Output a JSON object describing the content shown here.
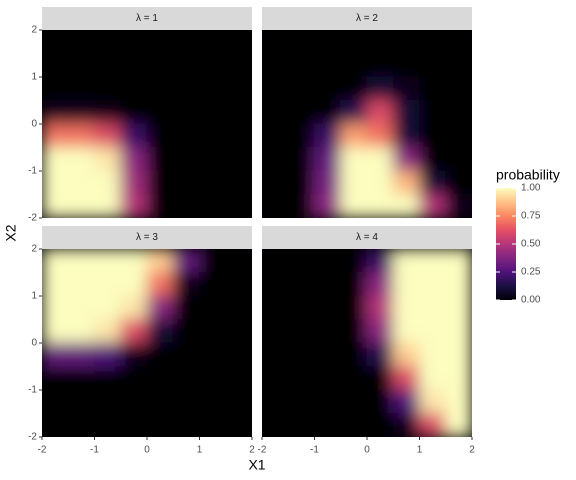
{
  "chart_data": {
    "type": "heatmap",
    "x_title": "X1",
    "y_title": "X2",
    "xlim": [
      -2,
      2
    ],
    "ylim": [
      -2,
      2
    ],
    "xticks": [
      -2,
      -1,
      0,
      1,
      2
    ],
    "yticks": [
      -2,
      -1,
      0,
      1,
      2
    ],
    "x": [
      -1.75,
      -1.25,
      -0.75,
      -0.25,
      0.25,
      0.75,
      1.25,
      1.75
    ],
    "y": [
      1.75,
      1.25,
      0.75,
      0.25,
      -0.25,
      -0.75,
      -1.25,
      -1.75
    ],
    "facets": [
      {
        "label": "λ = 1",
        "values": [
          [
            0,
            0,
            0,
            0,
            0,
            0,
            0,
            0
          ],
          [
            0,
            0,
            0,
            0,
            0,
            0,
            0,
            0
          ],
          [
            0,
            0,
            0,
            0,
            0,
            0,
            0,
            0
          ],
          [
            0.05,
            0.05,
            0.03,
            0,
            0,
            0,
            0,
            0
          ],
          [
            0.7,
            0.7,
            0.6,
            0.2,
            0,
            0,
            0,
            0
          ],
          [
            1,
            1,
            0.95,
            0.4,
            0,
            0,
            0,
            0
          ],
          [
            1,
            1,
            1,
            0.45,
            0,
            0,
            0,
            0
          ],
          [
            1,
            1,
            1,
            0.5,
            0,
            0,
            0,
            0
          ]
        ]
      },
      {
        "label": "λ = 2",
        "values": [
          [
            0,
            0,
            0,
            0,
            0,
            0,
            0,
            0
          ],
          [
            0,
            0,
            0,
            0,
            0,
            0,
            0,
            0
          ],
          [
            0,
            0,
            0,
            0,
            0.1,
            0.05,
            0,
            0
          ],
          [
            0,
            0,
            0,
            0.15,
            0.6,
            0.1,
            0,
            0
          ],
          [
            0,
            0,
            0.2,
            0.8,
            0.7,
            0.1,
            0,
            0
          ],
          [
            0,
            0,
            0.3,
            1,
            1,
            0.4,
            0,
            0
          ],
          [
            0,
            0,
            0.35,
            1,
            1,
            0.85,
            0.1,
            0
          ],
          [
            0,
            0,
            0.4,
            1,
            1,
            1,
            0.5,
            0.05
          ]
        ]
      },
      {
        "label": "λ = 3",
        "values": [
          [
            1,
            1,
            1,
            1,
            0.9,
            0.3,
            0,
            0
          ],
          [
            1,
            1,
            1,
            1,
            0.7,
            0.05,
            0,
            0
          ],
          [
            1,
            1,
            1,
            0.95,
            0.4,
            0,
            0,
            0
          ],
          [
            1,
            1,
            0.95,
            0.6,
            0.1,
            0,
            0,
            0
          ],
          [
            0.3,
            0.3,
            0.25,
            0.05,
            0,
            0,
            0,
            0
          ],
          [
            0,
            0,
            0,
            0,
            0,
            0,
            0,
            0
          ],
          [
            0,
            0,
            0,
            0,
            0,
            0,
            0,
            0
          ],
          [
            0,
            0,
            0,
            0,
            0,
            0,
            0,
            0
          ]
        ]
      },
      {
        "label": "λ = 4",
        "values": [
          [
            0,
            0,
            0,
            0,
            0.2,
            1,
            1,
            1
          ],
          [
            0,
            0,
            0,
            0,
            0.4,
            1,
            1,
            1
          ],
          [
            0,
            0,
            0,
            0,
            0.5,
            1,
            1,
            1
          ],
          [
            0,
            0,
            0,
            0,
            0.4,
            1,
            1,
            1
          ],
          [
            0,
            0,
            0,
            0,
            0.15,
            0.9,
            1,
            1
          ],
          [
            0,
            0,
            0,
            0,
            0,
            0.6,
            1,
            1
          ],
          [
            0,
            0,
            0,
            0,
            0,
            0.25,
            0.95,
            1
          ],
          [
            0,
            0,
            0,
            0,
            0,
            0.05,
            0.6,
            1
          ]
        ]
      }
    ],
    "colorscale": [
      "#000004",
      "#1c1044",
      "#4f127b",
      "#812581",
      "#b5367a",
      "#e55064",
      "#fb8861",
      "#fec287",
      "#fcfdbf"
    ],
    "legend": {
      "title": "probability",
      "clim": [
        0,
        1
      ],
      "ticks": [
        {
          "value": 0,
          "label": "0.00"
        },
        {
          "value": 0.25,
          "label": "0.25"
        },
        {
          "value": 0.5,
          "label": "0.50"
        },
        {
          "value": 0.75,
          "label": "0.75"
        },
        {
          "value": 1,
          "label": "1.00"
        }
      ]
    }
  }
}
